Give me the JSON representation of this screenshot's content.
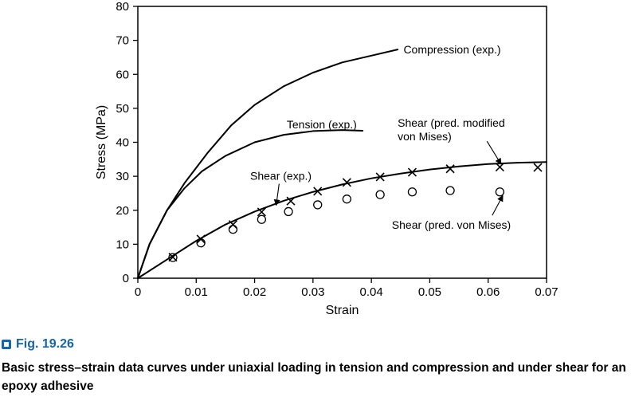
{
  "figure": {
    "label": "Fig. 19.26",
    "caption": "Basic stress–strain data curves under uniaxial loading in tension and compression and under shear for an epoxy adhesive",
    "icon": "figure-icon",
    "accent_color": "#1565a8"
  },
  "chart_data": {
    "type": "line",
    "xlabel": "Strain",
    "ylabel": "Stress (MPa)",
    "xlim": [
      0,
      0.07
    ],
    "ylim": [
      0,
      80
    ],
    "xticks": [
      0,
      0.01,
      0.02,
      0.03,
      0.04,
      0.05,
      0.06,
      0.07
    ],
    "xtick_labels": [
      "0",
      "0.01",
      "0.02",
      "0.03",
      "0.04",
      "0.05",
      "0.06",
      "0.07"
    ],
    "yticks": [
      0,
      10,
      20,
      30,
      40,
      50,
      60,
      70,
      80
    ],
    "ytick_labels": [
      "0",
      "10",
      "20",
      "30",
      "40",
      "50",
      "60",
      "70",
      "80"
    ],
    "grid": false,
    "series": [
      {
        "name": "Compression (exp.)",
        "style": "line",
        "x": [
          0,
          0.002,
          0.005,
          0.008,
          0.012,
          0.016,
          0.02,
          0.025,
          0.03,
          0.035,
          0.04,
          0.0445
        ],
        "y": [
          0,
          10,
          20,
          28,
          37,
          45,
          51,
          56.5,
          60.5,
          63.5,
          65.5,
          67.3
        ]
      },
      {
        "name": "Tension (exp.)",
        "style": "line",
        "x": [
          0,
          0.002,
          0.005,
          0.008,
          0.011,
          0.015,
          0.02,
          0.025,
          0.03,
          0.035,
          0.0385
        ],
        "y": [
          0,
          10,
          20,
          26.5,
          31.5,
          36,
          40,
          42.2,
          43.3,
          43.6,
          43.4
        ]
      },
      {
        "name": "Shear (exp.)",
        "style": "line",
        "x": [
          0,
          0.005,
          0.01,
          0.015,
          0.02,
          0.025,
          0.03,
          0.035,
          0.04,
          0.045,
          0.05,
          0.055,
          0.06,
          0.065,
          0.07
        ],
        "y": [
          0,
          5.5,
          11,
          15.8,
          19.6,
          22.8,
          25.4,
          27.6,
          29.4,
          30.8,
          32,
          32.9,
          33.6,
          34,
          34.2
        ]
      },
      {
        "name": "Shear (pred. modified von Mises)",
        "style": "x-marker",
        "x": [
          0.006,
          0.0108,
          0.0163,
          0.0212,
          0.0262,
          0.0308,
          0.0358,
          0.0415,
          0.047,
          0.0535,
          0.062,
          0.0685
        ],
        "y": [
          6.2,
          11.5,
          15.8,
          19.5,
          22.7,
          25.6,
          28.2,
          29.8,
          31.2,
          32.2,
          32.7,
          32.6
        ]
      },
      {
        "name": "Shear (pred. von Mises)",
        "style": "circle-marker",
        "x": [
          0.006,
          0.0108,
          0.0163,
          0.0212,
          0.0258,
          0.0308,
          0.0358,
          0.0415,
          0.047,
          0.0535,
          0.062
        ],
        "y": [
          6.1,
          10.4,
          14.4,
          17.3,
          19.6,
          21.6,
          23.3,
          24.6,
          25.4,
          25.8,
          25.4
        ]
      }
    ],
    "annotations": [
      {
        "text": "Compression (exp.)",
        "at": [
          0.0455,
          67.3
        ],
        "anchor": "start",
        "valign": "middle"
      },
      {
        "text": "Tension (exp.)",
        "at": [
          0.0315,
          45.3
        ],
        "anchor": "middle",
        "valign": "middle"
      },
      {
        "text": "Shear (exp.)",
        "at": [
          0.0245,
          30.2
        ],
        "anchor": "middle",
        "valign": "middle",
        "arrow_from": [
          0.0242,
          27.8
        ],
        "arrow_to": [
          0.0237,
          21.5
        ]
      },
      {
        "text": "Shear (pred. modified",
        "at": [
          0.0445,
          45.8
        ],
        "anchor": "start",
        "valign": "middle"
      },
      {
        "text": "von Mises)",
        "at": [
          0.0445,
          41.8
        ],
        "anchor": "start",
        "valign": "middle",
        "arrow_from": [
          0.0598,
          40.3
        ],
        "arrow_to": [
          0.0622,
          33.6
        ]
      },
      {
        "text": "Shear (pred. von Mises)",
        "at": [
          0.0435,
          15.7
        ],
        "anchor": "start",
        "valign": "middle",
        "arrow_from": [
          0.0607,
          18.5
        ],
        "arrow_to": [
          0.0625,
          24.3
        ]
      }
    ]
  }
}
